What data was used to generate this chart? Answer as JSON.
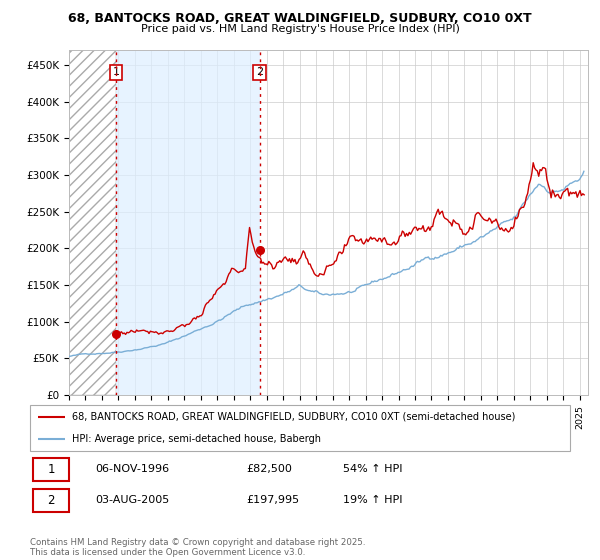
{
  "title1": "68, BANTOCKS ROAD, GREAT WALDINGFIELD, SUDBURY, CO10 0XT",
  "title2": "Price paid vs. HM Land Registry's House Price Index (HPI)",
  "ylabel_ticks": [
    "£0",
    "£50K",
    "£100K",
    "£150K",
    "£200K",
    "£250K",
    "£300K",
    "£350K",
    "£400K",
    "£450K"
  ],
  "ylabel_values": [
    0,
    50000,
    100000,
    150000,
    200000,
    250000,
    300000,
    350000,
    400000,
    450000
  ],
  "ylim": [
    0,
    470000
  ],
  "xlim_start": 1994.0,
  "xlim_end": 2025.5,
  "hatch_end": 1996.85,
  "blue_bg_end": 2005.58,
  "marker1_x": 1996.85,
  "marker1_y": 82500,
  "marker2_x": 2005.58,
  "marker2_y": 197995,
  "line1_color": "#cc0000",
  "line2_color": "#7aaed6",
  "legend1_label": "68, BANTOCKS ROAD, GREAT WALDINGFIELD, SUDBURY, CO10 0XT (semi-detached house)",
  "legend2_label": "HPI: Average price, semi-detached house, Babergh",
  "marker1_date": "06-NOV-1996",
  "marker1_price": "£82,500",
  "marker1_hpi": "54% ↑ HPI",
  "marker2_date": "03-AUG-2005",
  "marker2_price": "£197,995",
  "marker2_hpi": "19% ↑ HPI",
  "footer": "Contains HM Land Registry data © Crown copyright and database right 2025.\nThis data is licensed under the Open Government Licence v3.0.",
  "background_color": "#ffffff",
  "grid_color": "#cccccc",
  "blue_bg_color": "#ddeeff",
  "hatch_color": "#aaaaaa"
}
